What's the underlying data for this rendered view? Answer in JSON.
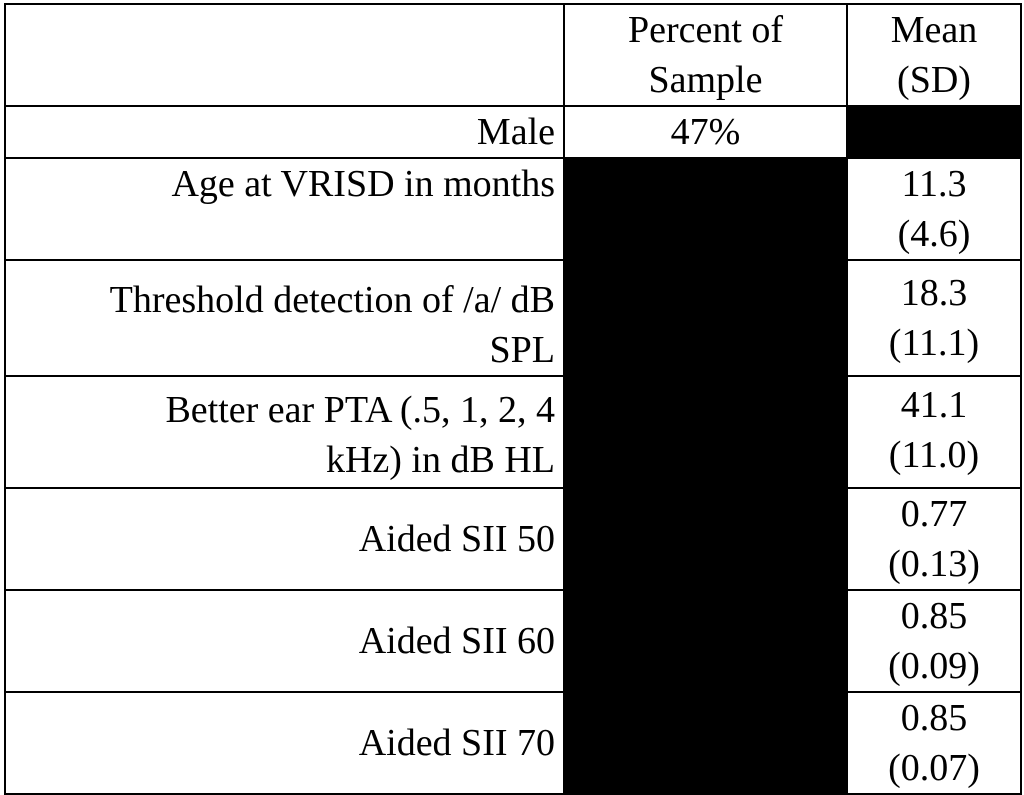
{
  "table": {
    "header": {
      "col1": "",
      "col2": "Percent of Sample",
      "col3": "Mean (SD)"
    },
    "rows": [
      {
        "label": "Male",
        "percent": "47%",
        "mean": ""
      },
      {
        "label": "Age at VRISD in months",
        "percent": "",
        "mean": "11.3 (4.6)"
      },
      {
        "label": "Threshold detection of /a/ dB SPL",
        "percent": "",
        "mean": "18.3 (11.1)"
      },
      {
        "label": "Better ear PTA (.5, 1, 2, 4 kHz) in dB HL",
        "percent": "",
        "mean": "41.1 (11.0)"
      },
      {
        "label": "Aided SII 50",
        "percent": "",
        "mean": "0.77 (0.13)"
      },
      {
        "label": "Aided SII 60",
        "percent": "",
        "mean": "0.85 (0.09)"
      },
      {
        "label": "Aided SII 70",
        "percent": "",
        "mean": "0.85 (0.07)"
      }
    ]
  },
  "colors": {
    "redaction": "#000000",
    "background": "#ffffff",
    "text": "#000000"
  }
}
